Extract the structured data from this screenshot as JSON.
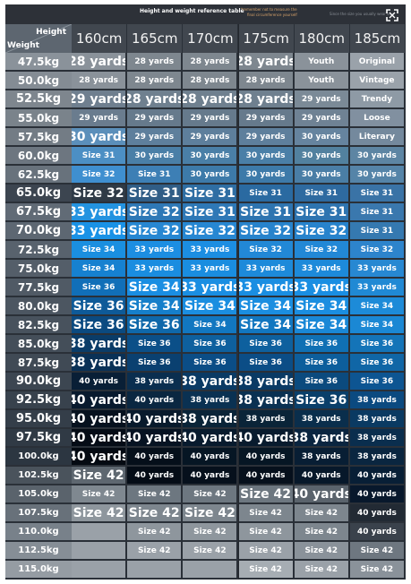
{
  "header": {
    "title": "Height and weight reference table",
    "note_1": "*remember not to measure the",
    "note_2": "final circumference yourself",
    "note_right": "Since the size you usually wear is",
    "height_label": "Height",
    "weight_label": "Weight"
  },
  "columns": [
    "160cm",
    "165cm",
    "170cm",
    "175cm",
    "180cm",
    "185cm"
  ],
  "rows": [
    {
      "weight": "47.5kg",
      "cells": [
        "28 yards",
        "28 yards",
        "28 yards",
        "28 yards",
        "Youth",
        "Original"
      ]
    },
    {
      "weight": "50.0kg",
      "cells": [
        "28 yards",
        "28 yards",
        "28 yards",
        "28 yards",
        "Youth",
        "Vintage"
      ]
    },
    {
      "weight": "52.5kg",
      "cells": [
        "29 yards",
        "28 yards",
        "28 yards",
        "28 yards",
        "29 yards",
        "Trendy"
      ]
    },
    {
      "weight": "55.0kg",
      "cells": [
        "29 yards",
        "29 yards",
        "29 yards",
        "29 yards",
        "29 yards",
        "Loose"
      ]
    },
    {
      "weight": "57.5kg",
      "cells": [
        "30 yards",
        "29 yards",
        "29 yards",
        "29 yards",
        "30 yards",
        "Literary"
      ]
    },
    {
      "weight": "60.0kg",
      "cells": [
        "Size 31",
        "30 yards",
        "30 yards",
        "30 yards",
        "30 yards",
        "30 yards"
      ]
    },
    {
      "weight": "62.5kg",
      "cells": [
        "Size 32",
        "Size 31",
        "30 yards",
        "30 yards",
        "30 yards",
        "30 yards"
      ]
    },
    {
      "weight": "65.0kg",
      "cells": [
        "Size 32",
        "Size 31",
        "Size 31",
        "Size 31",
        "Size 31",
        "Size 31"
      ]
    },
    {
      "weight": "67.5kg",
      "cells": [
        "33 yards",
        "Size 32",
        "Size 31",
        "Size 31",
        "Size 31",
        "Size 31"
      ]
    },
    {
      "weight": "70.0kg",
      "cells": [
        "33 yards",
        "Size 32",
        "Size 32",
        "Size 32",
        "Size 32",
        "Size 31"
      ]
    },
    {
      "weight": "72.5kg",
      "cells": [
        "Size 34",
        "33 yards",
        "33 yards",
        "Size 32",
        "Size 32",
        "Size 32"
      ]
    },
    {
      "weight": "75.0kg",
      "cells": [
        "Size 34",
        "33 yards",
        "33 yards",
        "33 yards",
        "33 yards",
        "33 yards"
      ]
    },
    {
      "weight": "77.5kg",
      "cells": [
        "Size 36",
        "Size 34",
        "33 yards",
        "33 yards",
        "33 yards",
        "33 yards"
      ]
    },
    {
      "weight": "80.0kg",
      "cells": [
        "Size 36",
        "Size 34",
        "Size 34",
        "Size 34",
        "Size 34",
        "Size 34"
      ]
    },
    {
      "weight": "82.5kg",
      "cells": [
        "Size 36",
        "Size 36",
        "Size 34",
        "Size 34",
        "Size 34",
        "Size 34"
      ]
    },
    {
      "weight": "85.0kg",
      "cells": [
        "38 yards",
        "Size 36",
        "Size 36",
        "Size 36",
        "Size 36",
        "Size 36"
      ]
    },
    {
      "weight": "87.5kg",
      "cells": [
        "38 yards",
        "Size 36",
        "Size 36",
        "Size 36",
        "Size 36",
        "Size 36"
      ]
    },
    {
      "weight": "90.0kg",
      "cells": [
        "40 yards",
        "38 yards",
        "38 yards",
        "38 yards",
        "Size 36",
        "Size 36"
      ]
    },
    {
      "weight": "92.5kg",
      "cells": [
        "40 yards",
        "40 yards",
        "38 yards",
        "38 yards",
        "Size 36",
        "38 yards"
      ]
    },
    {
      "weight": "95.0kg",
      "cells": [
        "40 yards",
        "40 yards",
        "38 yards",
        "38 yards",
        "38 yards",
        "38 yards"
      ]
    },
    {
      "weight": "97.5kg",
      "cells": [
        "40 yards",
        "40 yards",
        "40 yards",
        "40 yards",
        "38 yards",
        "38 yards"
      ]
    },
    {
      "weight": "100.0kg",
      "cells": [
        "40 yards",
        "40 yards",
        "40 yards",
        "40 yards",
        "38 yards",
        "38 yards"
      ]
    },
    {
      "weight": "102.5kg",
      "cells": [
        "Size 42",
        "40 yards",
        "40 yards",
        "40 yards",
        "40 yards",
        "40 yards"
      ]
    },
    {
      "weight": "105.0kg",
      "cells": [
        "Size 42",
        "Size 42",
        "Size 42",
        "Size 42",
        "40 yards",
        "40 yards"
      ]
    },
    {
      "weight": "107.5kg",
      "cells": [
        "Size 42",
        "Size 42",
        "Size 42",
        "Size 42",
        "Size 42",
        "40 yards"
      ]
    },
    {
      "weight": "110.0kg",
      "cells": [
        "",
        "Size 42",
        "Size 42",
        "Size 42",
        "Size 42",
        "40 yards"
      ]
    },
    {
      "weight": "112.5kg",
      "cells": [
        "",
        "Size 42",
        "Size 42",
        "Size 42",
        "Size 42",
        "Size 42"
      ]
    },
    {
      "weight": "115.0kg",
      "cells": [
        "",
        "",
        "",
        "Size 42",
        "Size 42",
        "Size 42"
      ]
    }
  ]
}
